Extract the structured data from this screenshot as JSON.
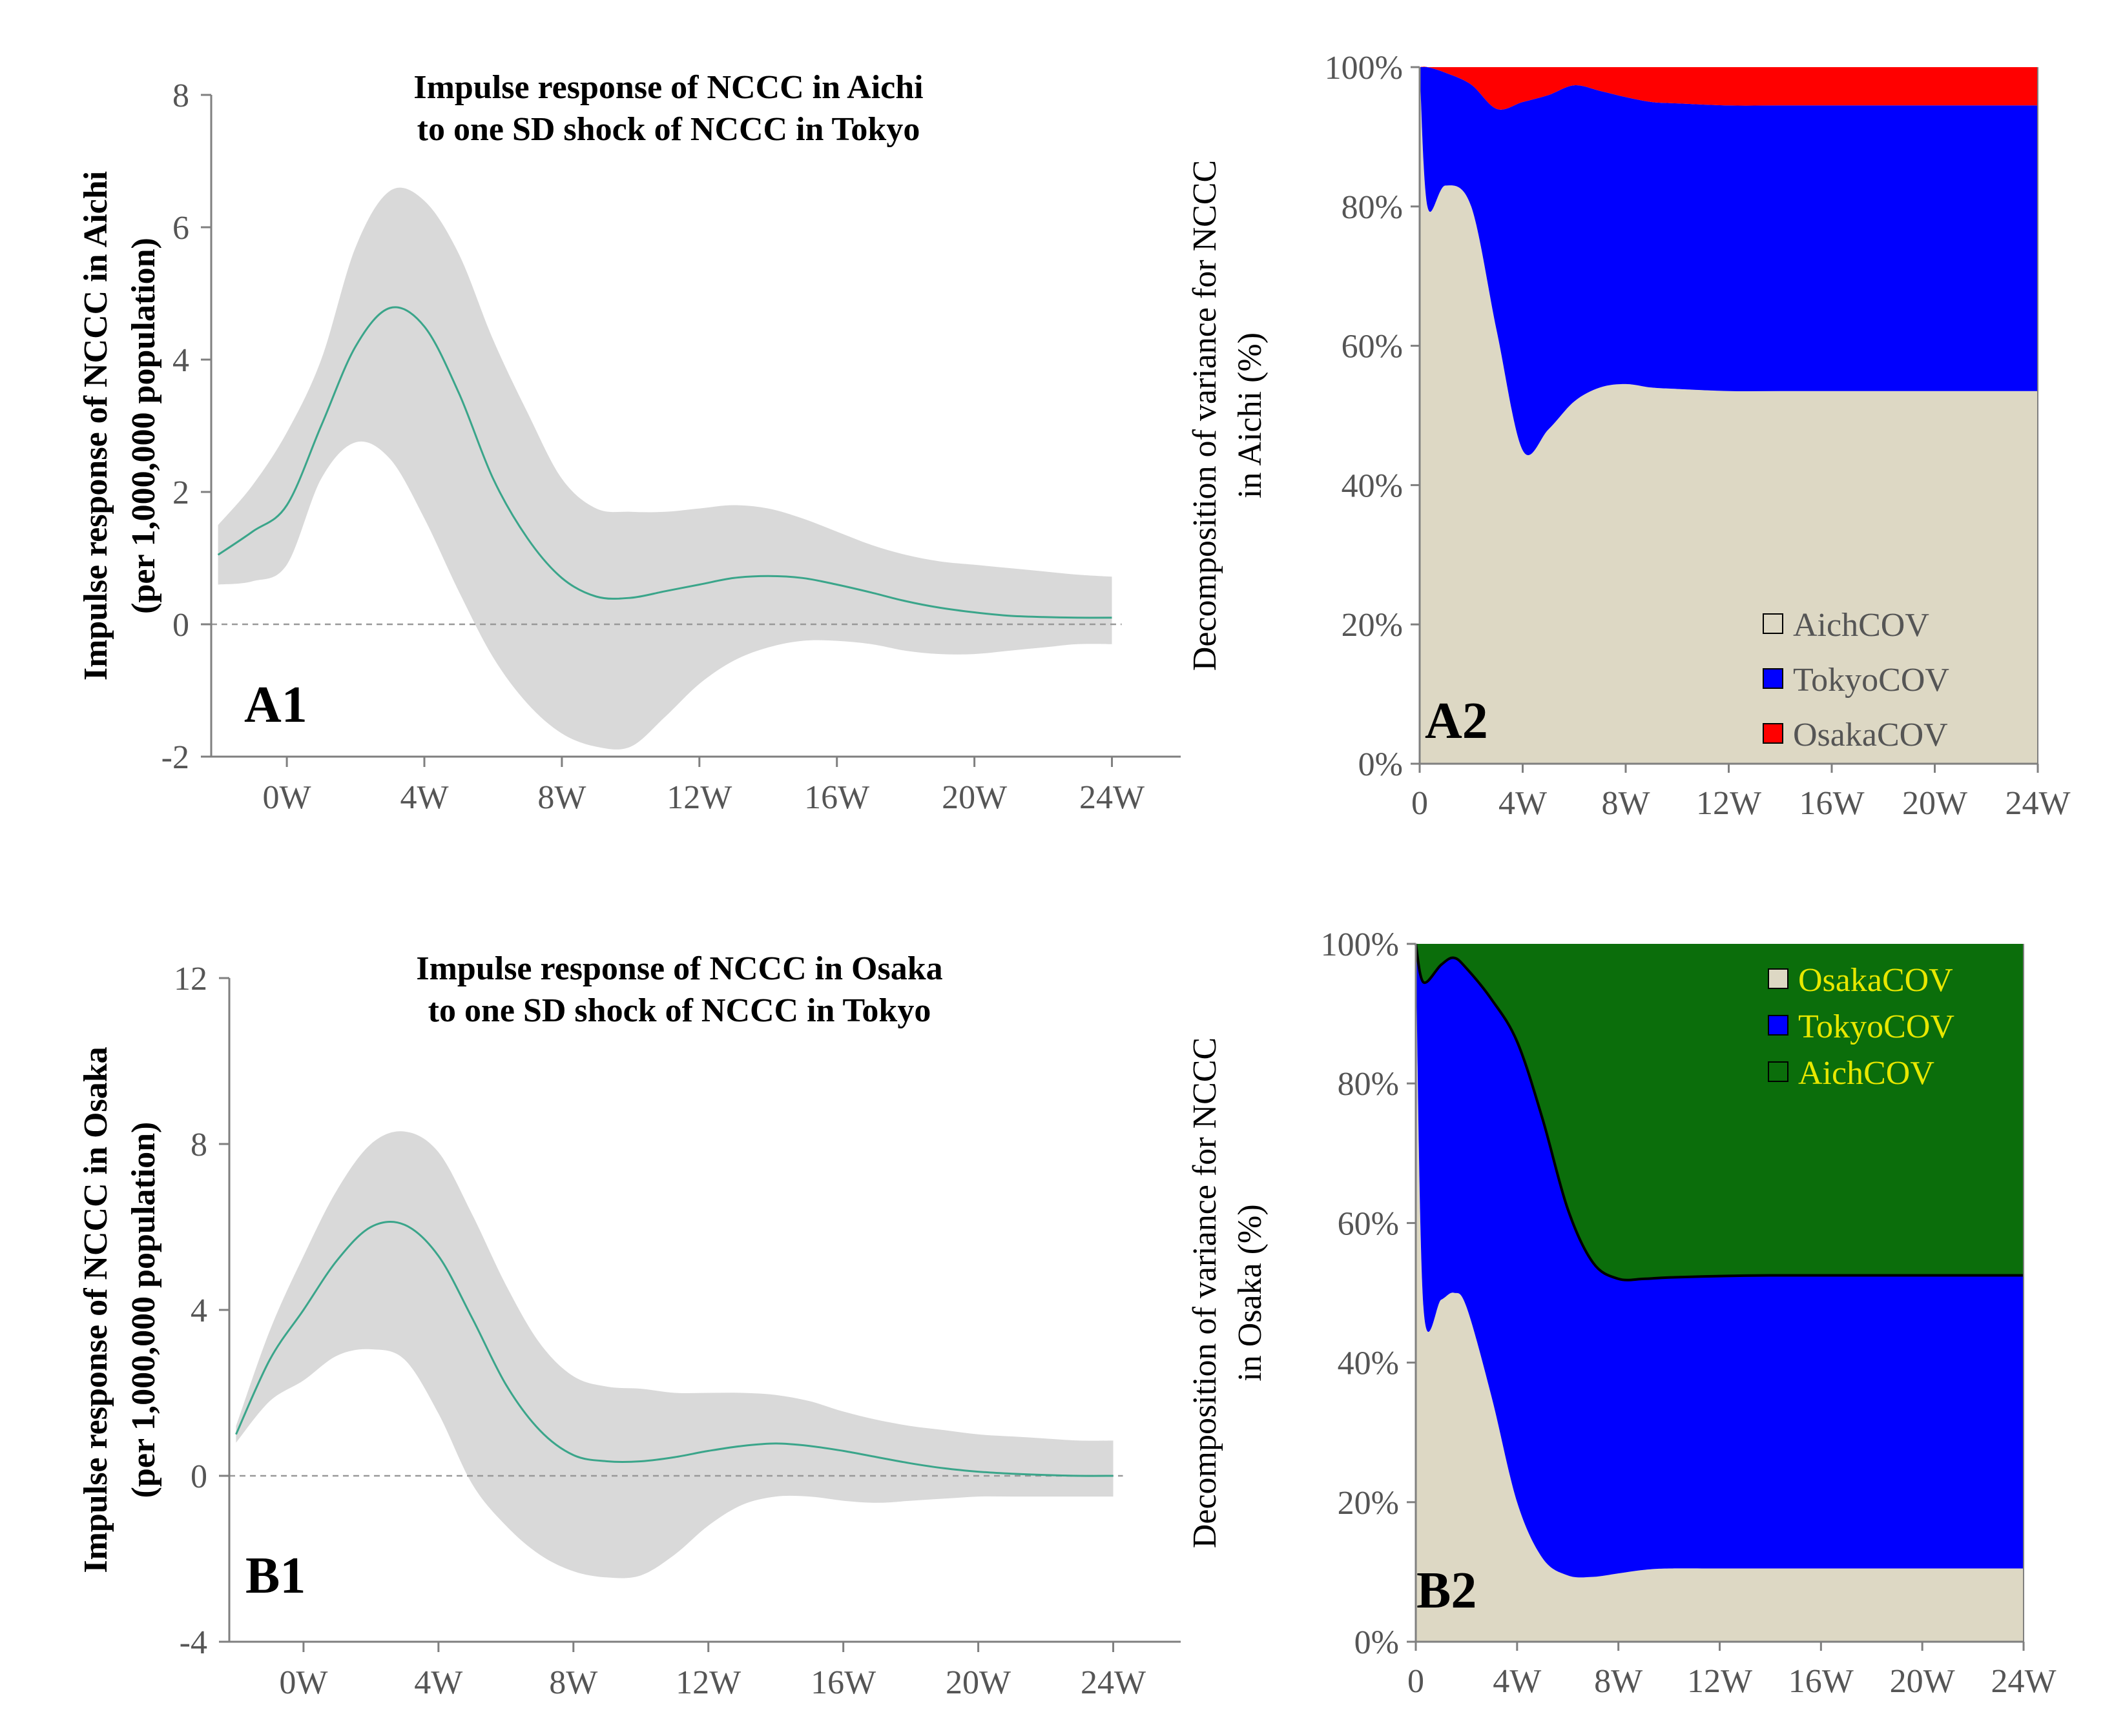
{
  "chart_data": [
    {
      "id": "A1",
      "type": "line",
      "panel_label": "A1",
      "title": [
        "Impulse response of NCCC in Aichi",
        "to one SD shock of NCCC  in Tokyo"
      ],
      "ylabel": [
        "Impulse response of NCCC in Aichi",
        "(per 1,000,000 population)"
      ],
      "xlabel": "",
      "xlim": [
        -2.2,
        26
      ],
      "ylim": [
        -2,
        8
      ],
      "yticks": [
        -2,
        0,
        2,
        4,
        6,
        8
      ],
      "yticklabels": [
        "-2",
        "0",
        "2",
        "4",
        "6",
        "8"
      ],
      "xticks": [
        0,
        4,
        8,
        12,
        16,
        20,
        24
      ],
      "xticklabels": [
        "0W",
        "4W",
        "8W",
        "12W",
        "16W",
        "20W",
        "24W"
      ],
      "line_color": "#3aa58a",
      "band_color": "#d9d9d9",
      "x": [
        -2,
        -1,
        0,
        1,
        2,
        3,
        4,
        5,
        6,
        7,
        8,
        9,
        10,
        11,
        12,
        13,
        14,
        15,
        16,
        17,
        18,
        19,
        20,
        21,
        22,
        23,
        24
      ],
      "response": [
        1.05,
        1.4,
        1.8,
        3.0,
        4.2,
        4.78,
        4.5,
        3.5,
        2.2,
        1.3,
        0.7,
        0.42,
        0.4,
        0.5,
        0.6,
        0.7,
        0.73,
        0.7,
        0.6,
        0.48,
        0.35,
        0.25,
        0.18,
        0.13,
        0.11,
        0.1,
        0.1
      ],
      "lower": [
        0.6,
        0.65,
        0.9,
        2.2,
        2.75,
        2.5,
        1.6,
        0.5,
        -0.5,
        -1.2,
        -1.65,
        -1.85,
        -1.85,
        -1.4,
        -0.9,
        -0.55,
        -0.35,
        -0.25,
        -0.25,
        -0.3,
        -0.4,
        -0.45,
        -0.45,
        -0.4,
        -0.35,
        -0.3,
        -0.3
      ],
      "upper": [
        1.5,
        2.1,
        2.9,
        4.0,
        5.7,
        6.55,
        6.4,
        5.6,
        4.3,
        3.2,
        2.2,
        1.75,
        1.7,
        1.7,
        1.75,
        1.8,
        1.75,
        1.6,
        1.4,
        1.2,
        1.05,
        0.95,
        0.9,
        0.85,
        0.8,
        0.75,
        0.72
      ]
    },
    {
      "id": "B1",
      "type": "line",
      "panel_label": "B1",
      "title": [
        "Impulse response of NCCC in Osaka",
        "to one SD shock of NCCC in Tokyo"
      ],
      "ylabel": [
        "Impulse response of NCCC in Osaka",
        "(per 1,000,000 population)"
      ],
      "xlabel": "",
      "xlim": [
        -2.2,
        26
      ],
      "ylim": [
        -4,
        12
      ],
      "yticks": [
        -4,
        0,
        4,
        8,
        12
      ],
      "yticklabels": [
        "-4",
        "0",
        "4",
        "8",
        "12"
      ],
      "xticks": [
        0,
        4,
        8,
        12,
        16,
        20,
        24
      ],
      "xticklabels": [
        "0W",
        "4W",
        "8W",
        "12W",
        "16W",
        "20W",
        "24W"
      ],
      "line_color": "#3aa58a",
      "band_color": "#d9d9d9",
      "x": [
        -2,
        -1,
        0,
        1,
        2,
        3,
        4,
        5,
        6,
        7,
        8,
        9,
        10,
        11,
        12,
        13,
        14,
        15,
        16,
        17,
        18,
        19,
        20,
        21,
        22,
        23,
        24
      ],
      "response": [
        1.0,
        2.8,
        4.0,
        5.2,
        6.0,
        6.05,
        5.3,
        3.8,
        2.2,
        1.1,
        0.5,
        0.35,
        0.35,
        0.45,
        0.6,
        0.72,
        0.78,
        0.72,
        0.6,
        0.45,
        0.3,
        0.18,
        0.1,
        0.05,
        0.02,
        0.0,
        0.0
      ],
      "lower": [
        0.8,
        1.8,
        2.3,
        2.9,
        3.05,
        2.8,
        1.5,
        -0.2,
        -1.2,
        -1.9,
        -2.3,
        -2.45,
        -2.4,
        -1.9,
        -1.2,
        -0.7,
        -0.5,
        -0.5,
        -0.6,
        -0.65,
        -0.6,
        -0.55,
        -0.5,
        -0.5,
        -0.5,
        -0.5,
        -0.5
      ],
      "upper": [
        1.2,
        3.5,
        5.3,
        6.9,
        8.0,
        8.3,
        7.8,
        6.3,
        4.6,
        3.2,
        2.4,
        2.15,
        2.1,
        2.0,
        2.0,
        2.0,
        1.95,
        1.8,
        1.55,
        1.35,
        1.2,
        1.1,
        1.0,
        0.95,
        0.9,
        0.85,
        0.85
      ]
    },
    {
      "id": "A2",
      "type": "area",
      "stacked": true,
      "panel_label": "A2",
      "ylabel": [
        "Decomposition of variance for NCCC",
        "in Aichi (%)"
      ],
      "xlabel": "",
      "xlim": [
        0,
        24
      ],
      "ylim": [
        0,
        100
      ],
      "yticks": [
        0,
        20,
        40,
        60,
        80,
        100
      ],
      "yticklabels": [
        "0%",
        "20%",
        "40%",
        "60%",
        "80%",
        "100%"
      ],
      "xticks": [
        0,
        4,
        8,
        12,
        16,
        20,
        24
      ],
      "xticklabels": [
        "0",
        "4W",
        "8W",
        "12W",
        "16W",
        "20W",
        "24W"
      ],
      "x": [
        0,
        0.3,
        1,
        2,
        3,
        4,
        5,
        6,
        7,
        8,
        9,
        10,
        12,
        14,
        16,
        18,
        20,
        22,
        24
      ],
      "series": [
        {
          "name": "AichCOV",
          "color": "#ddd8c4",
          "values": [
            100,
            80,
            83,
            80,
            62,
            45,
            48,
            52,
            54,
            54.5,
            54,
            53.8,
            53.5,
            53.5,
            53.5,
            53.5,
            53.5,
            53.5,
            53.5
          ]
        },
        {
          "name": "TokyoCOV",
          "color": "#0000ff",
          "values": [
            0,
            20,
            16.2,
            17.5,
            32,
            50,
            48,
            45.4,
            42.6,
            41.2,
            41,
            41,
            41,
            41,
            41,
            41,
            41,
            41,
            41
          ]
        },
        {
          "name": "OsakaCOV",
          "color": "#ff0000",
          "values": [
            0,
            0,
            0.8,
            2.5,
            6,
            5,
            4,
            2.6,
            3.4,
            4.3,
            5,
            5.2,
            5.5,
            5.5,
            5.5,
            5.5,
            5.5,
            5.5,
            5.5
          ]
        }
      ],
      "legend": {
        "position": "bottom-right",
        "order": [
          "AichCOV",
          "TokyoCOV",
          "OsakaCOV"
        ],
        "text_color": "#555555"
      }
    },
    {
      "id": "B2",
      "type": "area",
      "stacked": true,
      "panel_label": "B2",
      "ylabel": [
        "Decomposition of variance for NCCC",
        "in Osaka (%)"
      ],
      "xlabel": "",
      "xlim": [
        0,
        24
      ],
      "ylim": [
        0,
        100
      ],
      "yticks": [
        0,
        20,
        40,
        60,
        80,
        100
      ],
      "yticklabels": [
        "0%",
        "20%",
        "40%",
        "60%",
        "80%",
        "100%"
      ],
      "xticks": [
        0,
        4,
        8,
        12,
        16,
        20,
        24
      ],
      "xticklabels": [
        "0",
        "4W",
        "8W",
        "12W",
        "16W",
        "20W",
        "24W"
      ],
      "x": [
        0,
        0.3,
        1,
        1.5,
        2,
        3,
        4,
        5,
        6,
        7,
        8,
        9,
        10,
        12,
        14,
        16,
        18,
        20,
        22,
        24
      ],
      "series": [
        {
          "name": "OsakaCOV",
          "color": "#ddd8c4",
          "values": [
            100,
            48,
            49,
            50,
            48,
            35,
            20,
            12,
            9.5,
            9.3,
            9.8,
            10.3,
            10.5,
            10.5,
            10.5,
            10.5,
            10.5,
            10.5,
            10.5,
            10.5
          ]
        },
        {
          "name": "TokyoCOV",
          "color": "#0000ff",
          "values": [
            0,
            46.5,
            48,
            48,
            48.5,
            57,
            66,
            63,
            52.5,
            45,
            42.2,
            41.7,
            41.7,
            41.9,
            42,
            42,
            42,
            42,
            42,
            42
          ]
        },
        {
          "name": "AichCOV",
          "color": "#0b6e0b",
          "values": [
            0,
            5.5,
            3,
            2,
            3.5,
            8,
            14,
            25,
            38,
            45.7,
            48,
            48,
            47.8,
            47.6,
            47.5,
            47.5,
            47.5,
            47.5,
            47.5,
            47.5
          ]
        }
      ],
      "legend": {
        "position": "top-right",
        "order": [
          "OsakaCOV",
          "TokyoCOV",
          "AichCOV"
        ],
        "text_color": "#e8e800"
      }
    }
  ]
}
